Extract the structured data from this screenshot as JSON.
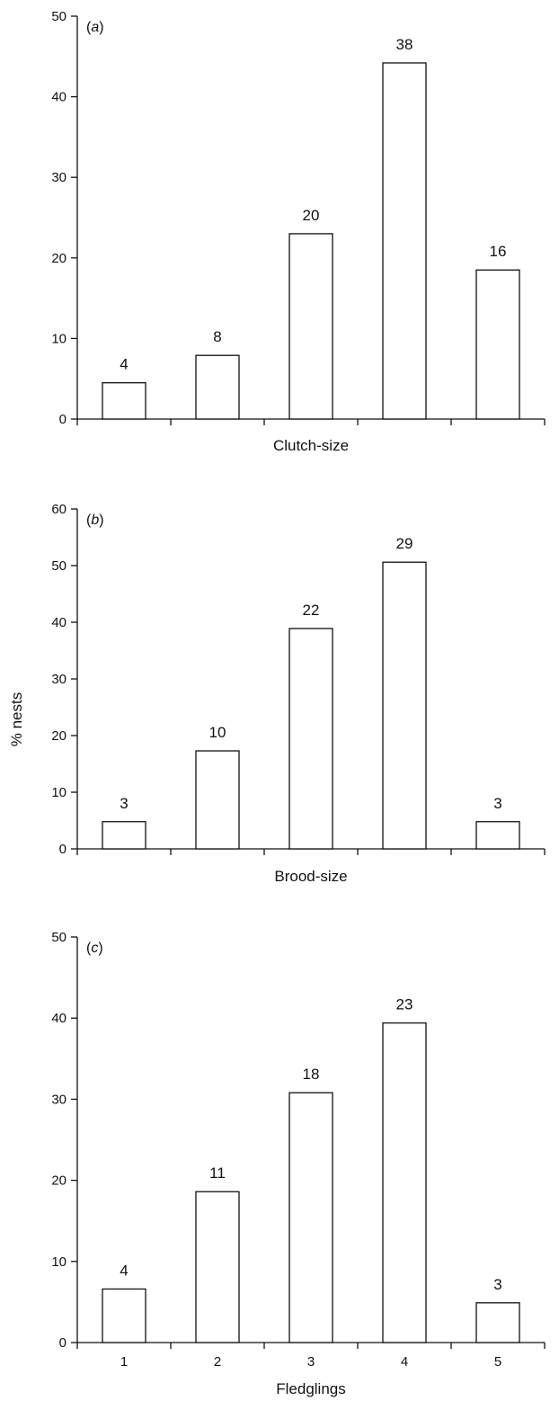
{
  "y_axis_label": "% nests",
  "chart_data": [
    {
      "type": "bar",
      "panel": "(a)",
      "panel_letter": "a",
      "categories": [
        "1",
        "2",
        "3",
        "4",
        "5"
      ],
      "category_labels_shown": false,
      "values": [
        4.5,
        7.9,
        23.0,
        44.2,
        18.5
      ],
      "bar_labels": [
        "4",
        "8",
        "20",
        "38",
        "16"
      ],
      "xlabel": "Clutch-size",
      "ylabel": "",
      "ylim": [
        0,
        50
      ],
      "yticks": [
        0,
        10,
        20,
        30,
        40,
        50
      ],
      "grid": false,
      "legend": false
    },
    {
      "type": "bar",
      "panel": "(b)",
      "panel_letter": "b",
      "categories": [
        "1",
        "2",
        "3",
        "4",
        "5"
      ],
      "category_labels_shown": false,
      "values": [
        4.8,
        17.3,
        38.9,
        50.6,
        4.8
      ],
      "bar_labels": [
        "3",
        "10",
        "22",
        "29",
        "3"
      ],
      "xlabel": "Brood-size",
      "ylabel": "% nests",
      "ylim": [
        0,
        60
      ],
      "yticks": [
        0,
        10,
        20,
        30,
        40,
        50,
        60
      ],
      "grid": false,
      "legend": false
    },
    {
      "type": "bar",
      "panel": "(c)",
      "panel_letter": "c",
      "categories": [
        "1",
        "2",
        "3",
        "4",
        "5"
      ],
      "category_labels_shown": true,
      "values": [
        6.6,
        18.6,
        30.8,
        39.4,
        4.9
      ],
      "bar_labels": [
        "4",
        "11",
        "18",
        "23",
        "3"
      ],
      "xlabel": "Fledglings",
      "ylabel": "",
      "ylim": [
        0,
        50
      ],
      "yticks": [
        0,
        10,
        20,
        30,
        40,
        50
      ],
      "grid": false,
      "legend": false
    }
  ]
}
